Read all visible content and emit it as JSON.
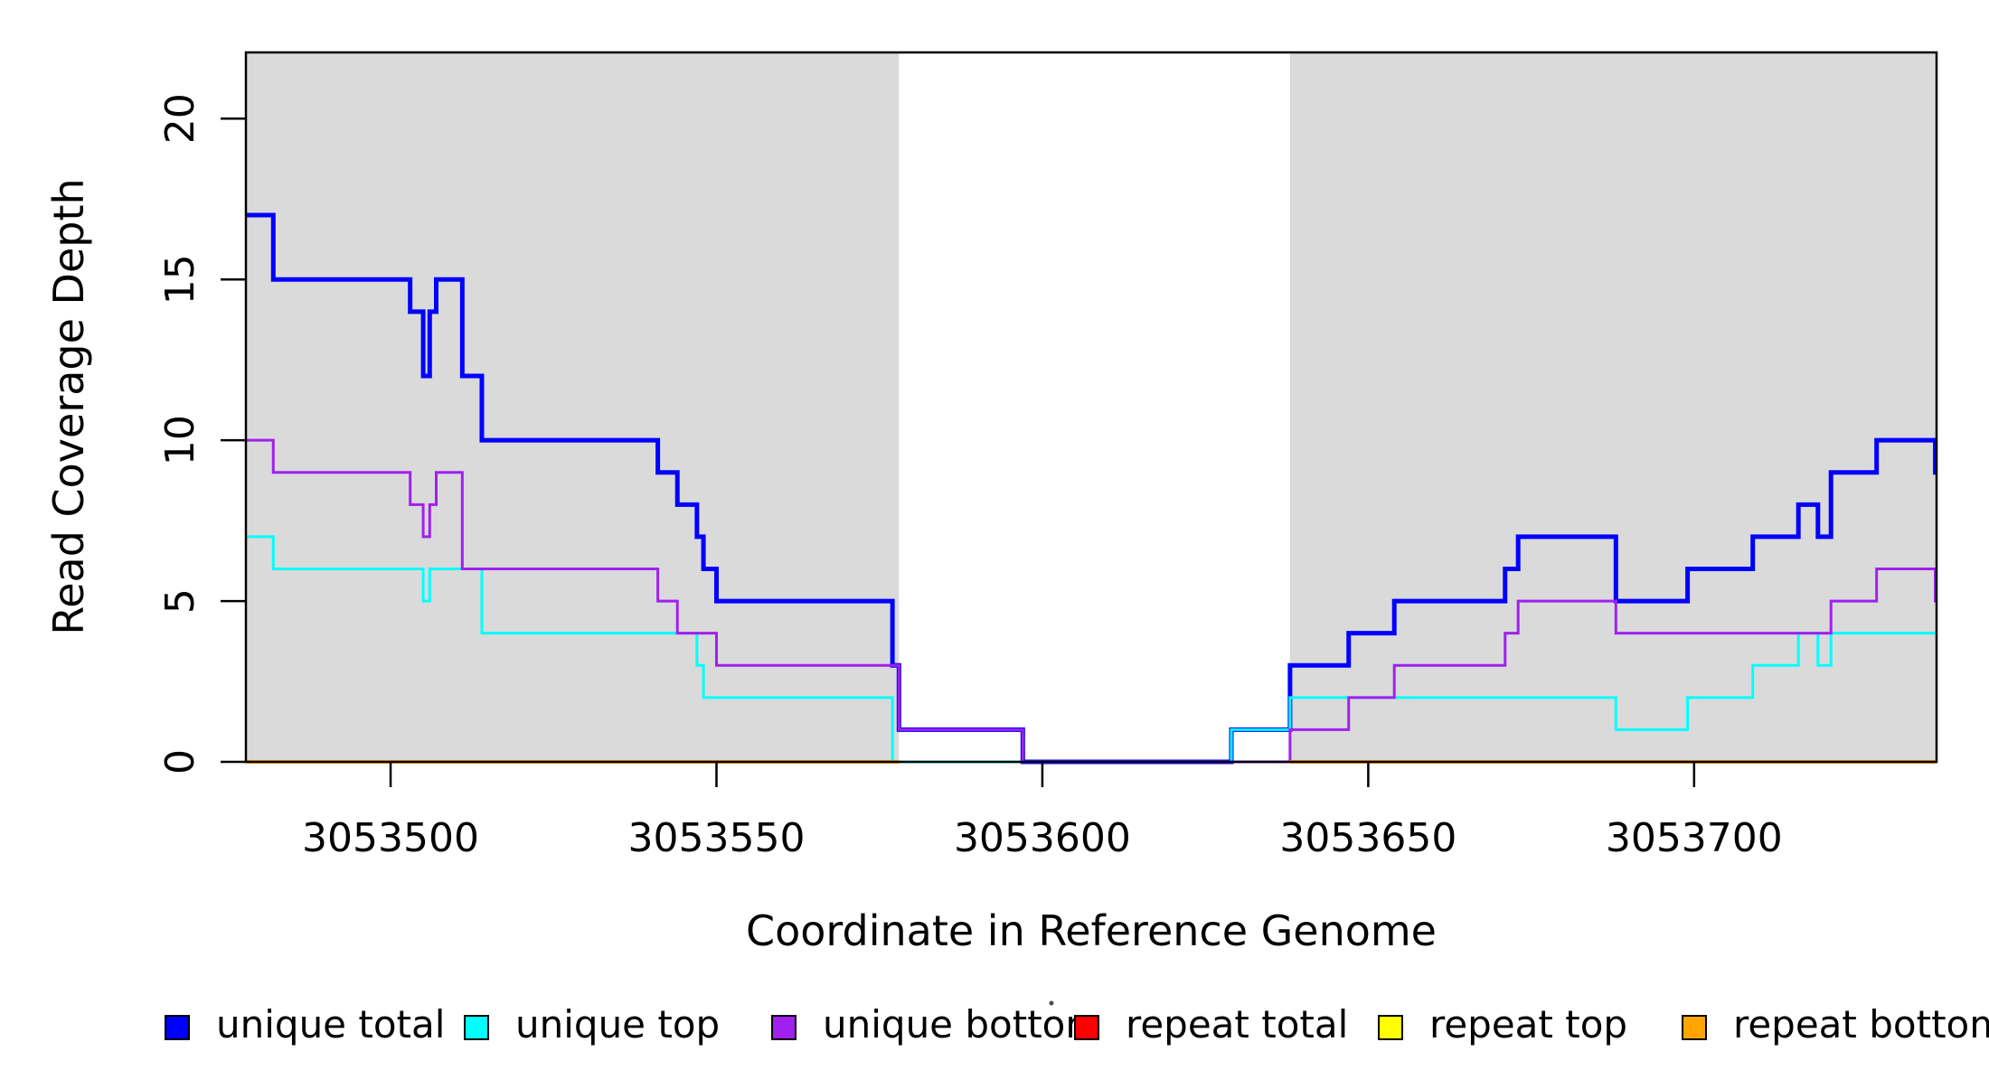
{
  "chart_data": {
    "type": "line",
    "subtype": "step-after",
    "title": "",
    "xlabel": "Coordinate in Reference Genome",
    "ylabel": "Read Coverage Depth",
    "xlim": [
      3053477.8,
      3053737.2
    ],
    "ylim": [
      0,
      22.06
    ],
    "xticks": [
      3053500,
      3053550,
      3053600,
      3053650,
      3053700
    ],
    "yticks": [
      0,
      5,
      10,
      15,
      20
    ],
    "grid": "off",
    "legend_position": "bottom",
    "shade_color": "#dadada",
    "shaded_regions": [
      {
        "name": "repeat-region-left",
        "x0": 3053477.8,
        "x1": 3053578
      },
      {
        "name": "repeat-region-right",
        "x0": 3053638,
        "x1": 3053737.2
      }
    ],
    "series": [
      {
        "name": "unique total",
        "color": "#0000ff",
        "width": 5,
        "steps": [
          [
            3053478,
            17
          ],
          [
            3053482,
            15
          ],
          [
            3053503,
            14
          ],
          [
            3053505,
            12
          ],
          [
            3053506,
            14
          ],
          [
            3053507,
            15
          ],
          [
            3053511,
            12
          ],
          [
            3053514,
            10
          ],
          [
            3053541,
            9
          ],
          [
            3053544,
            8
          ],
          [
            3053547,
            7
          ],
          [
            3053548,
            6
          ],
          [
            3053550,
            5
          ],
          [
            3053577,
            3
          ],
          [
            3053578,
            1
          ],
          [
            3053597,
            0
          ],
          [
            3053629,
            1
          ],
          [
            3053638,
            3
          ],
          [
            3053647,
            4
          ],
          [
            3053654,
            5
          ],
          [
            3053671,
            6
          ],
          [
            3053673,
            7
          ],
          [
            3053688,
            5
          ],
          [
            3053699,
            6
          ],
          [
            3053709,
            7
          ],
          [
            3053716,
            8
          ],
          [
            3053719,
            7
          ],
          [
            3053721,
            9
          ],
          [
            3053728,
            10
          ],
          [
            3053737,
            9
          ]
        ]
      },
      {
        "name": "unique top",
        "color": "#00ffff",
        "width": 3,
        "steps": [
          [
            3053478,
            7
          ],
          [
            3053482,
            6
          ],
          [
            3053505,
            5
          ],
          [
            3053506,
            6
          ],
          [
            3053514,
            4
          ],
          [
            3053547,
            3
          ],
          [
            3053548,
            2
          ],
          [
            3053577,
            0
          ],
          [
            3053629,
            1
          ],
          [
            3053638,
            2
          ],
          [
            3053688,
            1
          ],
          [
            3053699,
            2
          ],
          [
            3053709,
            3
          ],
          [
            3053716,
            4
          ],
          [
            3053719,
            3
          ],
          [
            3053721,
            4
          ]
        ]
      },
      {
        "name": "unique bottom",
        "color": "#a020f0",
        "width": 3,
        "steps": [
          [
            3053478,
            10
          ],
          [
            3053482,
            9
          ],
          [
            3053503,
            8
          ],
          [
            3053505,
            7
          ],
          [
            3053506,
            8
          ],
          [
            3053507,
            9
          ],
          [
            3053511,
            6
          ],
          [
            3053541,
            5
          ],
          [
            3053544,
            4
          ],
          [
            3053550,
            3
          ],
          [
            3053578,
            1
          ],
          [
            3053597,
            0
          ],
          [
            3053638,
            1
          ],
          [
            3053647,
            2
          ],
          [
            3053654,
            3
          ],
          [
            3053671,
            4
          ],
          [
            3053673,
            5
          ],
          [
            3053688,
            4
          ],
          [
            3053721,
            5
          ],
          [
            3053728,
            6
          ],
          [
            3053737,
            5
          ]
        ]
      },
      {
        "name": "repeat total",
        "color": "#ff0000",
        "width": 3,
        "value": 0,
        "segments": [
          [
            3053477.8,
            3053578
          ],
          [
            3053638,
            3053737.2
          ]
        ]
      },
      {
        "name": "repeat top",
        "color": "#ffff00",
        "width": 3,
        "value": 0,
        "segments": [
          [
            3053477.8,
            3053578
          ],
          [
            3053638,
            3053737.2
          ]
        ]
      },
      {
        "name": "repeat bottom",
        "color": "#ffa500",
        "width": 4,
        "value": 0,
        "segments": [
          [
            3053477.8,
            3053578
          ],
          [
            3053638,
            3053737.2
          ]
        ]
      }
    ],
    "legend": [
      {
        "label": "unique total",
        "color": "#0000ff"
      },
      {
        "label": "unique top",
        "color": "#00ffff"
      },
      {
        "label": "unique bottom",
        "color": "#a020f0"
      },
      {
        "label": "repeat total",
        "color": "#ff0000"
      },
      {
        "label": "repeat top",
        "color": "#ffff00"
      },
      {
        "label": "repeat bottom",
        "color": "#ffa500"
      }
    ]
  }
}
